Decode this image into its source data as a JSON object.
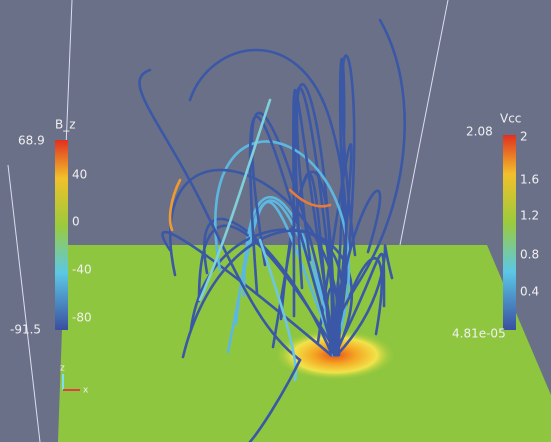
{
  "colorbars": [
    {
      "title": "B_z",
      "max": "68.9",
      "min": "-91.5",
      "ticks": [
        "40",
        "0",
        "-40",
        "-80"
      ]
    },
    {
      "title": "Vcc",
      "max": "2.08",
      "min": "4.81e-05",
      "ticks": [
        "2",
        "1.6",
        "1.2",
        "0.8",
        "0.4"
      ]
    }
  ],
  "axes_glyph": {
    "z": "z",
    "x": "x"
  }
}
